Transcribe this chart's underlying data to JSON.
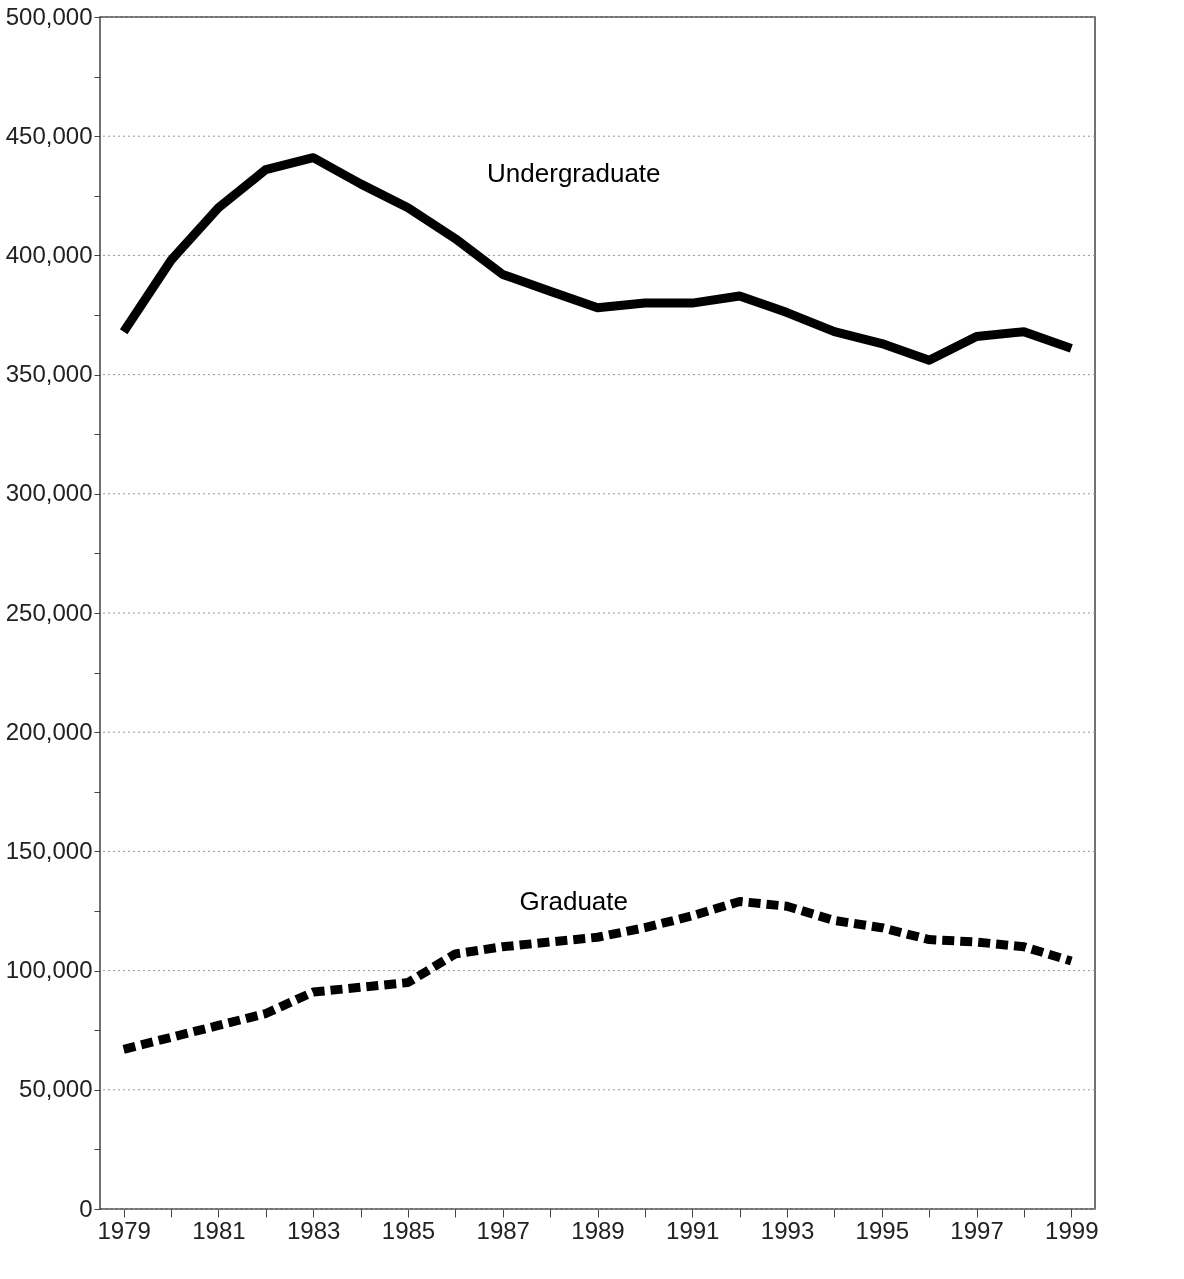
{
  "chart_data": {
    "type": "line",
    "x": [
      1979,
      1980,
      1981,
      1982,
      1983,
      1984,
      1985,
      1986,
      1987,
      1988,
      1989,
      1990,
      1991,
      1992,
      1993,
      1994,
      1995,
      1996,
      1997,
      1998,
      1999
    ],
    "series": [
      {
        "name": "Undergraduate",
        "color": "#000000",
        "line_style": "solid",
        "values": [
          368000,
          398000,
          420000,
          436000,
          441000,
          430000,
          420000,
          407000,
          392000,
          385000,
          378000,
          380000,
          380000,
          383000,
          376000,
          368000,
          363000,
          356000,
          366000,
          368000,
          361000
        ]
      },
      {
        "name": "Graduate",
        "color": "#000000",
        "line_style": "dashed",
        "values": [
          67000,
          72000,
          77000,
          82000,
          91000,
          93000,
          95000,
          107000,
          110000,
          112000,
          114000,
          118000,
          123000,
          129000,
          127000,
          121000,
          118000,
          113000,
          112000,
          110000,
          104000
        ]
      }
    ],
    "xlim": [
      1978.5,
      1999.5
    ],
    "xticks": [
      1979,
      {
        "value": 1980,
        "label": null
      },
      1981,
      {
        "value": 1982,
        "label": null
      },
      1983,
      {
        "value": 1984,
        "label": null
      },
      1985,
      {
        "value": 1986,
        "label": null
      },
      1987,
      {
        "value": 1988,
        "label": null
      },
      1989,
      {
        "value": 1990,
        "label": null
      },
      1991,
      {
        "value": 1992,
        "label": null
      },
      1993,
      {
        "value": 1994,
        "label": null
      },
      1995,
      {
        "value": 1996,
        "label": null
      },
      1997,
      {
        "value": 1998,
        "label": null
      },
      1999
    ],
    "ylim": [
      0,
      500000
    ],
    "yticks": [
      {
        "value": 0,
        "label": "0"
      },
      {
        "value": 25000,
        "label": null
      },
      {
        "value": 50000,
        "label": "50,000"
      },
      {
        "value": 75000,
        "label": null
      },
      {
        "value": 100000,
        "label": "100,000"
      },
      {
        "value": 125000,
        "label": null
      },
      {
        "value": 150000,
        "label": "150,000"
      },
      {
        "value": 175000,
        "label": null
      },
      {
        "value": 200000,
        "label": "200,000"
      },
      {
        "value": 225000,
        "label": null
      },
      {
        "value": 250000,
        "label": "250,000"
      },
      {
        "value": 275000,
        "label": null
      },
      {
        "value": 300000,
        "label": "300,000"
      },
      {
        "value": 325000,
        "label": null
      },
      {
        "value": 350000,
        "label": "350,000"
      },
      {
        "value": 375000,
        "label": null
      },
      {
        "value": 400000,
        "label": "400,000"
      },
      {
        "value": 425000,
        "label": null
      },
      {
        "value": 450000,
        "label": "450,000"
      },
      {
        "value": 475000,
        "label": null
      },
      {
        "value": 500000,
        "label": "500,000"
      }
    ],
    "grid": "y",
    "legend": false,
    "marker": "none"
  }
}
